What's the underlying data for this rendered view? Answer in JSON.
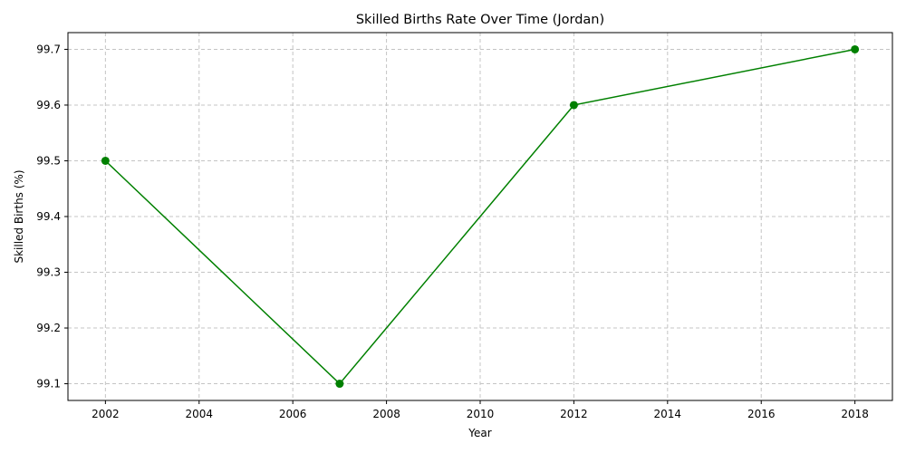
{
  "chart_data": {
    "type": "line",
    "title": "Skilled Births Rate Over Time (Jordan)",
    "xlabel": "Year",
    "ylabel": "Skilled Births (%)",
    "xlim": [
      2001.2,
      2018.8
    ],
    "ylim": [
      99.07,
      99.73
    ],
    "x_ticks": [
      "2002",
      "2004",
      "2006",
      "2008",
      "2010",
      "2012",
      "2014",
      "2016",
      "2018"
    ],
    "y_ticks": [
      "99.1",
      "99.2",
      "99.3",
      "99.4",
      "99.5",
      "99.6",
      "99.7"
    ],
    "grid": true,
    "series": [
      {
        "color": "#008000",
        "marker": "circle",
        "x": [
          2002,
          2007,
          2012,
          2018
        ],
        "values": [
          99.5,
          99.1,
          99.6,
          99.7
        ]
      }
    ]
  }
}
